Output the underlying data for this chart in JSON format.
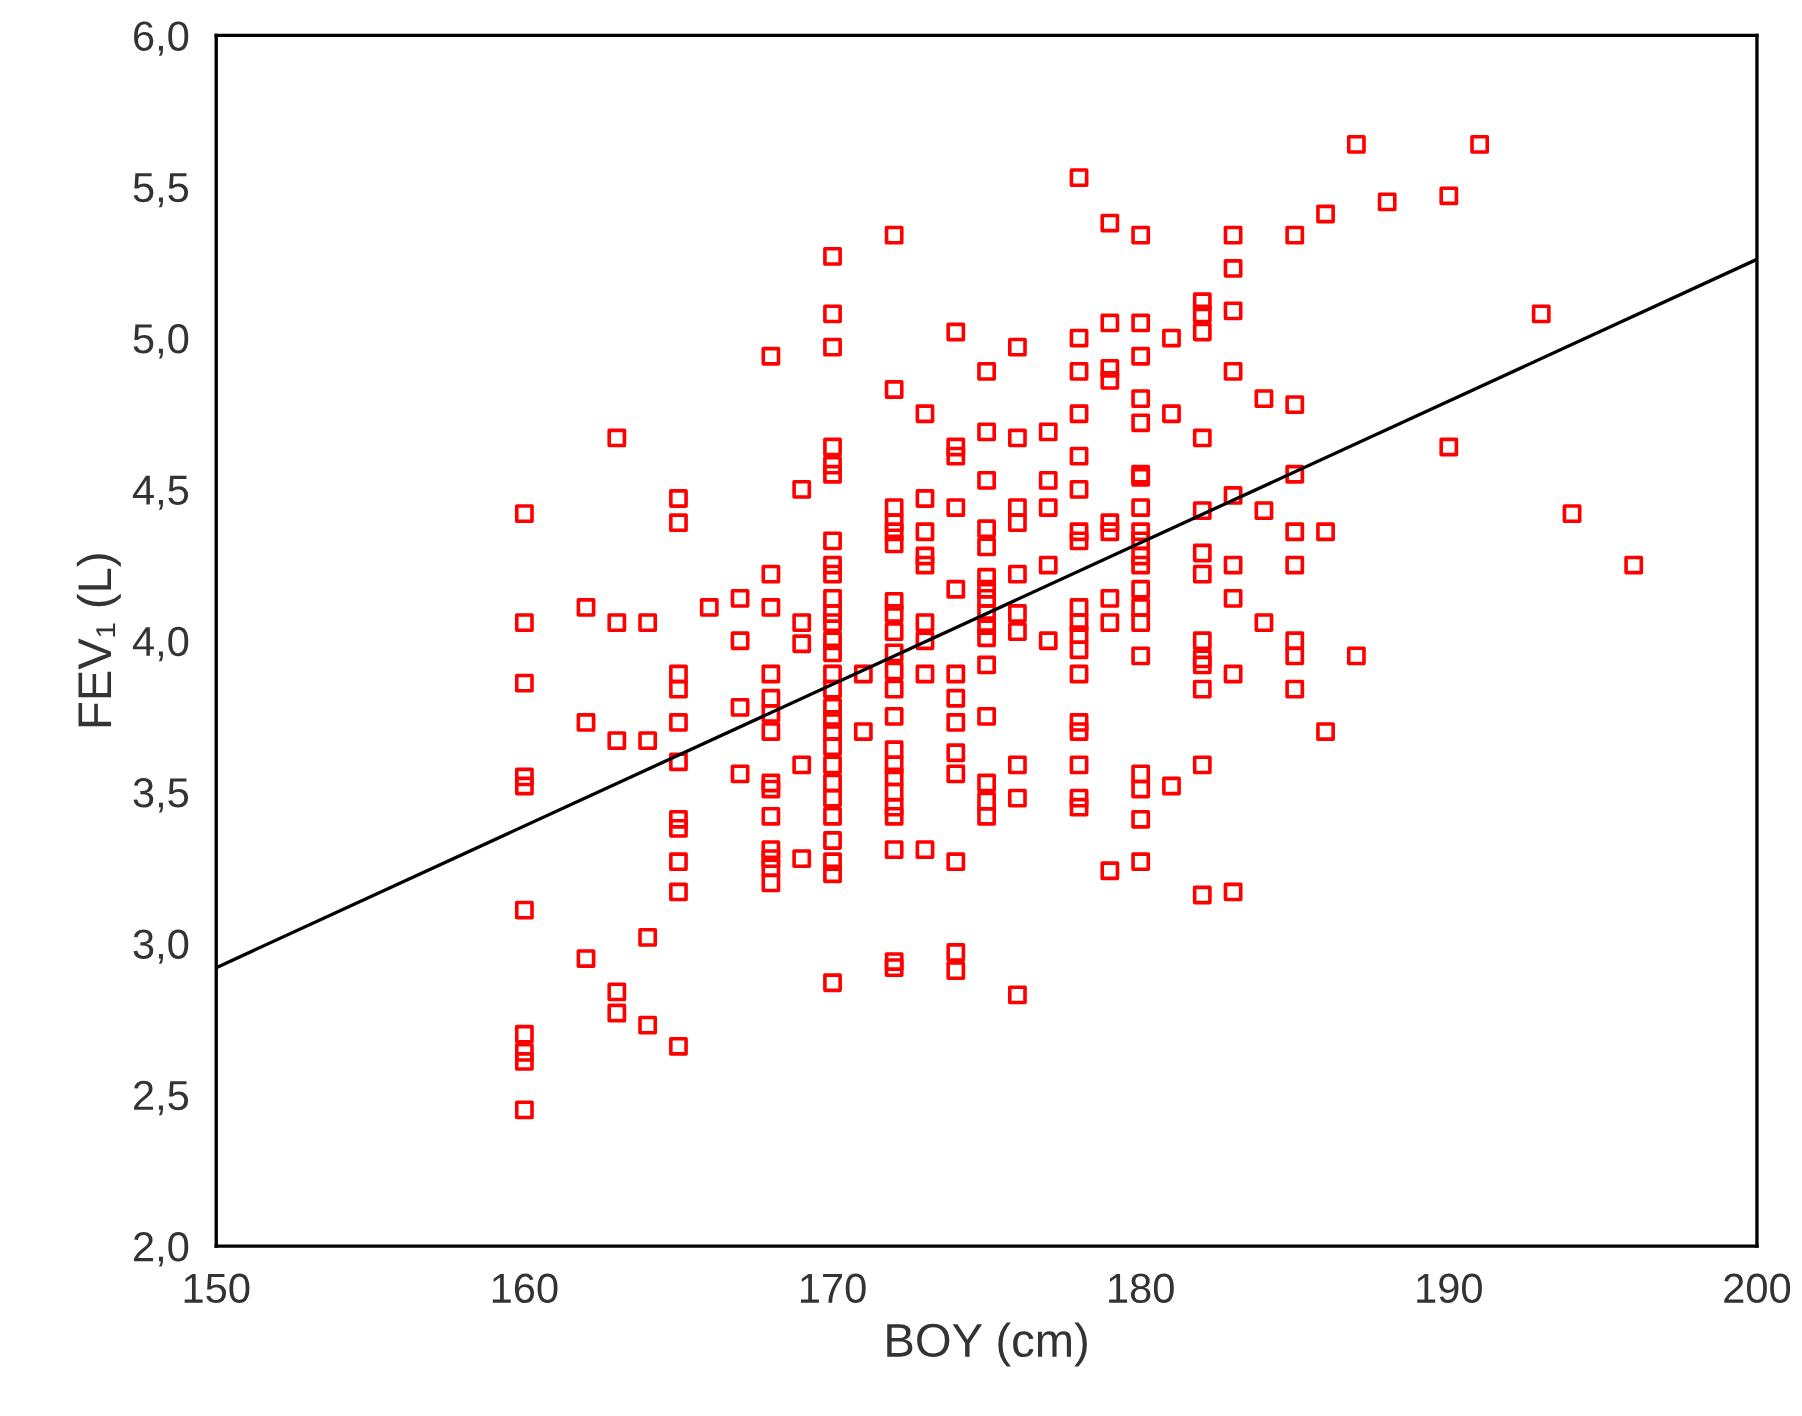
{
  "chart_data": {
    "type": "scatter",
    "xlabel": "BOY (cm)",
    "ylabel": "FEV₁ (L)",
    "xlim": [
      150,
      200
    ],
    "xticks": [
      150,
      160,
      170,
      180,
      190,
      200
    ],
    "ylim": [
      2.0,
      6.0
    ],
    "yticks": [
      {
        "value": 2.0,
        "label": "2,0"
      },
      {
        "value": 2.5,
        "label": "2,5"
      },
      {
        "value": 3.0,
        "label": "3,0"
      },
      {
        "value": 3.5,
        "label": "3,5"
      },
      {
        "value": 4.0,
        "label": "4,0"
      },
      {
        "value": 4.5,
        "label": "4,5"
      },
      {
        "value": 5.0,
        "label": "5,0"
      },
      {
        "value": 5.5,
        "label": "5,5"
      },
      {
        "value": 6.0,
        "label": "6,0"
      }
    ],
    "grid": false,
    "legend": false,
    "series": [
      {
        "marker": "square",
        "color": "#ff0000",
        "x": [
          160,
          160,
          160,
          160,
          160,
          160,
          160,
          160,
          160,
          160,
          162,
          162,
          162,
          163,
          163,
          163,
          163,
          163,
          164,
          164,
          164,
          164,
          165,
          165,
          165,
          165,
          165,
          165,
          165,
          165,
          165,
          165,
          165,
          166,
          167,
          167,
          167,
          167,
          168,
          168,
          168,
          168,
          168,
          168,
          168,
          168,
          168,
          168,
          168,
          168,
          168,
          168,
          169,
          169,
          169,
          169,
          169,
          170,
          170,
          170,
          170,
          170,
          170,
          170,
          170,
          170,
          170,
          170,
          170,
          170,
          170,
          170,
          170,
          170,
          170,
          170,
          170,
          170,
          170,
          170,
          170,
          170,
          170,
          170,
          170,
          171,
          171,
          172,
          172,
          172,
          172,
          172,
          172,
          172,
          172,
          172,
          172,
          172,
          172,
          172,
          172,
          172,
          172,
          172,
          172,
          172,
          172,
          172,
          172,
          173,
          173,
          173,
          173,
          173,
          173,
          173,
          173,
          173,
          174,
          174,
          174,
          174,
          174,
          174,
          174,
          174,
          174,
          174,
          174,
          174,
          174,
          175,
          175,
          175,
          175,
          175,
          175,
          175,
          175,
          175,
          175,
          175,
          175,
          175,
          175,
          175,
          175,
          176,
          176,
          176,
          176,
          176,
          176,
          176,
          176,
          176,
          176,
          177,
          177,
          177,
          177,
          177,
          178,
          178,
          178,
          178,
          178,
          178,
          178,
          178,
          178,
          178,
          178,
          178,
          178,
          178,
          178,
          178,
          178,
          178,
          179,
          179,
          179,
          179,
          179,
          179,
          179,
          179,
          179,
          180,
          180,
          180,
          180,
          180,
          180,
          180,
          180,
          180,
          180,
          180,
          180,
          180,
          180,
          180,
          180,
          180,
          180,
          180,
          180,
          181,
          181,
          181,
          182,
          182,
          182,
          182,
          182,
          182,
          182,
          182,
          182,
          182,
          182,
          182,
          182,
          183,
          183,
          183,
          183,
          183,
          183,
          183,
          183,
          183,
          184,
          184,
          184,
          185,
          185,
          185,
          185,
          185,
          185,
          185,
          185,
          186,
          186,
          186,
          187,
          187,
          188,
          190,
          190,
          191,
          193,
          194,
          196
        ],
        "values": [
          4.42,
          4.06,
          3.86,
          3.55,
          3.52,
          3.11,
          2.7,
          2.64,
          2.61,
          2.45,
          4.11,
          3.73,
          2.95,
          4.67,
          4.06,
          3.67,
          2.84,
          2.77,
          4.06,
          3.67,
          3.02,
          2.73,
          4.47,
          4.39,
          3.89,
          3.84,
          3.73,
          3.6,
          3.41,
          3.38,
          3.27,
          3.17,
          2.66,
          4.11,
          4.14,
          4.0,
          3.78,
          3.56,
          4.94,
          4.22,
          4.11,
          3.89,
          3.81,
          3.76,
          3.7,
          3.53,
          3.51,
          3.42,
          3.31,
          3.28,
          3.25,
          3.2,
          4.5,
          4.06,
          3.99,
          3.59,
          3.28,
          5.27,
          5.08,
          4.97,
          4.64,
          4.58,
          4.55,
          4.33,
          4.25,
          4.22,
          4.14,
          4.09,
          4.06,
          4.0,
          3.96,
          3.89,
          3.84,
          3.78,
          3.74,
          3.7,
          3.65,
          3.59,
          3.53,
          3.48,
          3.42,
          3.34,
          3.27,
          3.23,
          2.87,
          3.89,
          3.7,
          5.34,
          4.83,
          4.44,
          4.39,
          4.36,
          4.32,
          4.13,
          4.09,
          4.03,
          3.96,
          3.9,
          3.84,
          3.75,
          3.64,
          3.59,
          3.55,
          3.5,
          3.45,
          3.42,
          3.31,
          2.94,
          2.92,
          4.75,
          4.47,
          4.36,
          4.28,
          4.25,
          4.06,
          4.0,
          3.89,
          3.31,
          5.02,
          4.64,
          4.61,
          4.44,
          4.17,
          3.81,
          3.73,
          3.63,
          3.56,
          3.27,
          2.97,
          2.91,
          3.89,
          4.89,
          4.69,
          4.53,
          4.37,
          4.31,
          4.21,
          4.17,
          4.14,
          4.09,
          4.05,
          4.01,
          3.92,
          3.75,
          3.53,
          3.47,
          3.42,
          4.97,
          4.67,
          4.44,
          4.39,
          4.22,
          4.09,
          4.03,
          3.59,
          3.48,
          2.83,
          4.69,
          4.53,
          4.44,
          4.25,
          4.0,
          5.53,
          5.0,
          4.89,
          4.75,
          4.61,
          4.5,
          4.36,
          4.33,
          4.11,
          4.06,
          4.02,
          3.97,
          3.89,
          3.73,
          3.7,
          3.59,
          3.48,
          3.45,
          5.38,
          5.05,
          4.9,
          4.86,
          4.39,
          4.36,
          4.14,
          4.06,
          3.24,
          5.34,
          5.05,
          4.94,
          4.8,
          4.72,
          4.55,
          4.54,
          4.44,
          4.36,
          4.33,
          4.28,
          4.25,
          4.17,
          4.11,
          4.06,
          3.95,
          3.56,
          3.51,
          3.41,
          3.27,
          5.0,
          4.75,
          3.52,
          5.12,
          5.08,
          5.02,
          4.67,
          4.43,
          4.29,
          4.22,
          4.0,
          3.94,
          3.92,
          3.84,
          3.59,
          3.16,
          5.34,
          5.23,
          5.09,
          4.89,
          4.48,
          4.25,
          4.14,
          3.89,
          3.17,
          4.8,
          4.43,
          4.06,
          5.34,
          4.78,
          4.55,
          4.36,
          4.25,
          4.0,
          3.95,
          3.84,
          5.41,
          4.36,
          3.7,
          5.64,
          3.95,
          5.45,
          5.47,
          4.64,
          5.64,
          5.08,
          4.42,
          4.25
        ]
      },
      {
        "type": "line",
        "color": "#000000",
        "x": [
          150,
          200
        ],
        "values": [
          2.92,
          5.26
        ]
      }
    ]
  }
}
